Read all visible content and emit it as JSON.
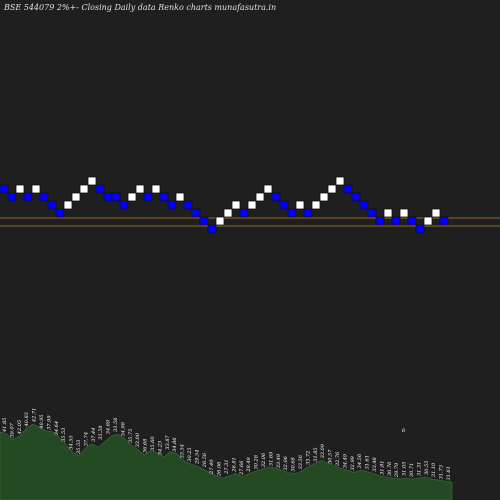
{
  "chart_data": {
    "type": "renko",
    "title": "BSE 544079 2%+-  Closing Daily data  Renko  charts munafasutra.in",
    "ref_lines": [
      90.72,
      90.48
    ],
    "bricks": [
      {
        "dir": "down",
        "level": 8
      },
      {
        "dir": "down",
        "level": 7
      },
      {
        "dir": "up",
        "level": 8
      },
      {
        "dir": "down",
        "level": 7
      },
      {
        "dir": "up",
        "level": 8
      },
      {
        "dir": "down",
        "level": 7
      },
      {
        "dir": "down",
        "level": 6
      },
      {
        "dir": "down",
        "level": 5
      },
      {
        "dir": "up",
        "level": 6
      },
      {
        "dir": "up",
        "level": 7
      },
      {
        "dir": "up",
        "level": 8
      },
      {
        "dir": "up",
        "level": 9
      },
      {
        "dir": "down",
        "level": 8
      },
      {
        "dir": "down",
        "level": 7
      },
      {
        "dir": "down",
        "level": 7
      },
      {
        "dir": "down",
        "level": 6
      },
      {
        "dir": "up",
        "level": 7
      },
      {
        "dir": "up",
        "level": 8
      },
      {
        "dir": "down",
        "level": 7
      },
      {
        "dir": "up",
        "level": 8
      },
      {
        "dir": "down",
        "level": 7
      },
      {
        "dir": "down",
        "level": 6
      },
      {
        "dir": "up",
        "level": 7
      },
      {
        "dir": "down",
        "level": 6
      },
      {
        "dir": "down",
        "level": 5
      },
      {
        "dir": "down",
        "level": 4
      },
      {
        "dir": "down",
        "level": 3
      },
      {
        "dir": "up",
        "level": 4
      },
      {
        "dir": "up",
        "level": 5
      },
      {
        "dir": "up",
        "level": 6
      },
      {
        "dir": "down",
        "level": 5
      },
      {
        "dir": "up",
        "level": 6
      },
      {
        "dir": "up",
        "level": 7
      },
      {
        "dir": "up",
        "level": 8
      },
      {
        "dir": "down",
        "level": 7
      },
      {
        "dir": "down",
        "level": 6
      },
      {
        "dir": "down",
        "level": 5
      },
      {
        "dir": "up",
        "level": 6
      },
      {
        "dir": "down",
        "level": 5
      },
      {
        "dir": "up",
        "level": 6
      },
      {
        "dir": "up",
        "level": 7
      },
      {
        "dir": "up",
        "level": 8
      },
      {
        "dir": "up",
        "level": 9
      },
      {
        "dir": "down",
        "level": 8
      },
      {
        "dir": "down",
        "level": 7
      },
      {
        "dir": "down",
        "level": 6
      },
      {
        "dir": "down",
        "level": 5
      },
      {
        "dir": "down",
        "level": 4
      },
      {
        "dir": "up",
        "level": 5
      },
      {
        "dir": "down",
        "level": 4
      },
      {
        "dir": "up",
        "level": 5
      },
      {
        "dir": "down",
        "level": 4
      },
      {
        "dir": "down",
        "level": 3
      },
      {
        "dir": "up",
        "level": 4
      },
      {
        "dir": "up",
        "level": 5
      },
      {
        "dir": "down",
        "level": 4
      }
    ],
    "price_labels": [
      "41.85",
      "39.07",
      "42.05",
      "40.83",
      "42.71",
      "40.95",
      "37.99",
      "34.64",
      "35.53",
      "34.55",
      "35.53",
      "37.74",
      "37.44",
      "35.58",
      "34.69",
      "33.58",
      "34.98",
      "35.75",
      "33.00",
      "36.68",
      "35.60",
      "34.23",
      "33.87",
      "34.86",
      "33.54",
      "30.25",
      "29.54",
      "26.56",
      "27.40",
      "26.06",
      "27.31",
      "26.81",
      "27.66",
      "28.49",
      "30.28",
      "32.06",
      "31.69",
      "33.49",
      "32.06",
      "30.68",
      "33.56",
      "33.72",
      "31.85",
      "33.09",
      "30.57",
      "32.76",
      "34.49",
      "32.99",
      "34.56",
      "31.61",
      "33.48",
      "31.81",
      "30.76",
      "29.79",
      "31.05",
      "30.71",
      "31.31",
      "30.55",
      "31.10",
      "31.73",
      "31.61"
    ],
    "volume_levels": [
      0.62,
      0.6,
      0.55,
      0.58,
      0.65,
      0.69,
      0.66,
      0.63,
      0.62,
      0.57,
      0.51,
      0.44,
      0.4,
      0.47,
      0.51,
      0.48,
      0.53,
      0.58,
      0.6,
      0.56,
      0.5,
      0.46,
      0.41,
      0.45,
      0.43,
      0.39,
      0.44,
      0.42,
      0.36,
      0.33,
      0.31,
      0.28,
      0.25,
      0.22,
      0.2,
      0.22,
      0.24,
      0.21,
      0.24,
      0.26,
      0.28,
      0.3,
      0.29,
      0.27,
      0.25,
      0.24,
      0.26,
      0.3,
      0.33,
      0.36,
      0.34,
      0.31,
      0.29,
      0.27,
      0.25,
      0.27,
      0.26,
      0.24,
      0.22,
      0.21,
      0.2,
      0.19,
      0.2,
      0.19,
      0.2,
      0.21,
      0.19,
      0.18,
      0.17,
      0.16
    ],
    "marker": "6",
    "colors": {
      "background": "#1f1f1f",
      "up_brick": "#ffffff",
      "down_brick": "#0000ff",
      "brick_border": "#111111",
      "ref_line": "#c8782a",
      "volume_fill": "#234a23",
      "volume_stroke": "#3f6e3f",
      "label": "#ffffff"
    }
  }
}
